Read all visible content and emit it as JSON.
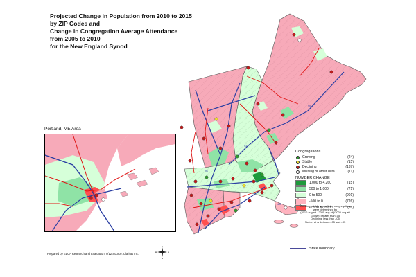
{
  "title_lines": [
    "Projected Change in Population from 2010 to 2015",
    "by ZIP Codes and",
    "Change in Congregation Average Attendance",
    "from 2005 to 2010",
    "for the New England Synod"
  ],
  "inset_label": "Portland, ME Area",
  "legend": {
    "congregations_header": "Congregations",
    "congregations": [
      {
        "label": "Growing",
        "count": "(24)",
        "color": "#2e9e2e"
      },
      {
        "label": "Stable",
        "count": "(15)",
        "color": "#f0e030"
      },
      {
        "label": "Declining",
        "count": "(137)",
        "color": "#c21b1b"
      },
      {
        "label": "Missing or other data",
        "count": "(11)",
        "color": "#ffffff"
      }
    ],
    "number_change_header": "NUMBER CHANGE",
    "classes": [
      {
        "label": "1,000  to  4,260",
        "count": "(15)",
        "color": "#1e9a3c"
      },
      {
        "label": "500  to  1,000",
        "count": "(71)",
        "color": "#8fe3a6"
      },
      {
        "label": "0  to    500",
        "count": "(901)",
        "color": "#d6ffd9"
      },
      {
        "label": "-500  to       0",
        "count": "(726)",
        "color": "#ffb3bf"
      },
      {
        "label": "-1,930  to  -500",
        "count": "(31)",
        "color": "#ff4f4f"
      }
    ]
  },
  "notes": [
    "*Growing, stable or declining congregations",
    "were determined by",
    "(2010 avg att - 2005 avg att)/2005 avg att",
    "Growth:  greater than .05",
    "Declining:  less than -.05",
    "Stable:  at or between .05 and -.05"
  ],
  "state_boundary_label": "State boundary",
  "credit": "Prepared by ELCA Research and Evaluation, 9/12 Source: Claritas Inc.",
  "compass": {
    "n": "N",
    "s": "S",
    "e": "E",
    "w": "W"
  },
  "colors": {
    "pink": "#f7aab9",
    "light_green": "#d6ffd9",
    "green": "#8fe3a6",
    "dark_green": "#1e9a3c",
    "red": "#ff4f4f",
    "road_blue": "#2b3fa3",
    "road_red": "#e01515",
    "water": "#ffffff"
  }
}
